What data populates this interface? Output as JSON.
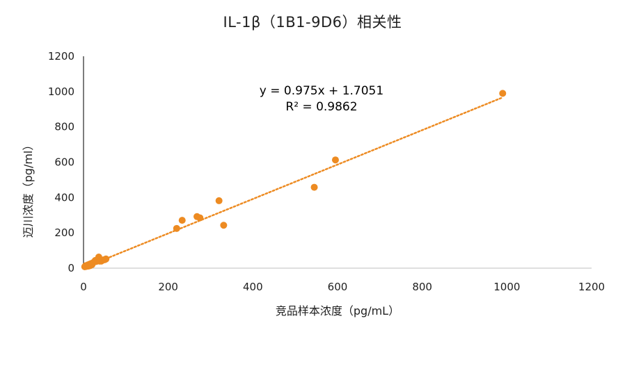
{
  "chart_data": {
    "type": "scatter",
    "title": "IL-1β（1B1-9D6）相关性",
    "xlabel": "竞品样本浓度（pg/mL）",
    "ylabel": "迈川浓度（pg/ml）",
    "xlim": [
      0,
      1200
    ],
    "ylim": [
      0,
      1200
    ],
    "x_ticks": [
      "0",
      "200",
      "400",
      "600",
      "800",
      "1000",
      "1200"
    ],
    "y_ticks": [
      "0",
      "200",
      "400",
      "600",
      "800",
      "1000",
      "1200"
    ],
    "grid": false,
    "legend": "none",
    "trendline": {
      "type": "linear",
      "slope": 0.975,
      "intercept": 1.7051,
      "equation": "y = 0.975x + 1.7051",
      "r_squared_label": "R² = 0.9862",
      "style": "dotted"
    },
    "series": [
      {
        "color": "#ED8B22",
        "points": [
          {
            "x": 3,
            "y": 8
          },
          {
            "x": 5,
            "y": 14
          },
          {
            "x": 7,
            "y": 10
          },
          {
            "x": 10,
            "y": 18
          },
          {
            "x": 12,
            "y": 12
          },
          {
            "x": 14,
            "y": 22
          },
          {
            "x": 16,
            "y": 15
          },
          {
            "x": 18,
            "y": 26
          },
          {
            "x": 20,
            "y": 20
          },
          {
            "x": 22,
            "y": 30
          },
          {
            "x": 25,
            "y": 35
          },
          {
            "x": 28,
            "y": 44
          },
          {
            "x": 30,
            "y": 38
          },
          {
            "x": 33,
            "y": 42
          },
          {
            "x": 36,
            "y": 63
          },
          {
            "x": 38,
            "y": 40
          },
          {
            "x": 42,
            "y": 40
          },
          {
            "x": 46,
            "y": 46
          },
          {
            "x": 50,
            "y": 48
          },
          {
            "x": 53,
            "y": 52
          },
          {
            "x": 220,
            "y": 225
          },
          {
            "x": 233,
            "y": 271
          },
          {
            "x": 268,
            "y": 292
          },
          {
            "x": 275,
            "y": 285
          },
          {
            "x": 320,
            "y": 382
          },
          {
            "x": 331,
            "y": 243
          },
          {
            "x": 545,
            "y": 458
          },
          {
            "x": 595,
            "y": 613
          },
          {
            "x": 990,
            "y": 990
          }
        ]
      }
    ]
  }
}
